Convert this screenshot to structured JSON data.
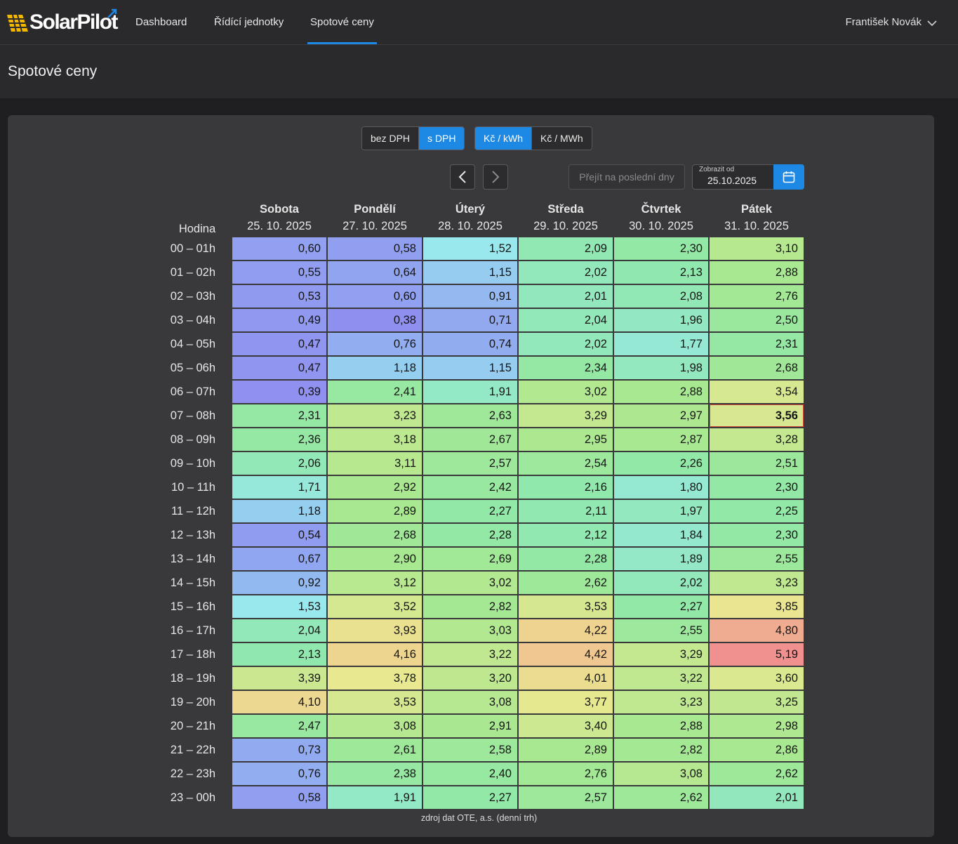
{
  "app": {
    "logo_text": "SolarPilot"
  },
  "nav": {
    "items": [
      {
        "label": "Dashboard"
      },
      {
        "label": "Řídící jednotky"
      },
      {
        "label": "Spotové ceny"
      }
    ],
    "active_index": 2,
    "user_name": "František Novák"
  },
  "page": {
    "title": "Spotové ceny"
  },
  "toggles": {
    "vat": {
      "options": [
        "bez DPH",
        "s DPH"
      ],
      "selected": "s DPH"
    },
    "unit": {
      "options": [
        "Kč / kWh",
        "Kč / MWh"
      ],
      "selected": "Kč / kWh"
    }
  },
  "controls": {
    "prev_icon": "chevron-left-icon",
    "next_icon": "chevron-right-icon",
    "recent_button": "Přejít na poslední dny",
    "date_label": "Zobrazit od",
    "date_value": "25.10.2025",
    "calendar_icon": "calendar-icon"
  },
  "table": {
    "hour_header": "Hodina",
    "days": [
      {
        "name": "Sobota",
        "date": "25. 10. 2025"
      },
      {
        "name": "Pondělí",
        "date": "27. 10. 2025"
      },
      {
        "name": "Úterý",
        "date": "28. 10. 2025"
      },
      {
        "name": "Středa",
        "date": "29. 10. 2025"
      },
      {
        "name": "Čtvrtek",
        "date": "30. 10. 2025"
      },
      {
        "name": "Pátek",
        "date": "31. 10. 2025"
      }
    ],
    "hours": [
      "00 – 01h",
      "01 – 02h",
      "02 – 03h",
      "03 – 04h",
      "04 – 05h",
      "05 – 06h",
      "06 – 07h",
      "07 – 08h",
      "08 – 09h",
      "09 – 10h",
      "10 – 11h",
      "11 – 12h",
      "12 – 13h",
      "13 – 14h",
      "14 – 15h",
      "15 – 16h",
      "16 – 17h",
      "17 – 18h",
      "18 – 19h",
      "19 – 20h",
      "20 – 21h",
      "21 – 22h",
      "22 – 23h",
      "23 – 00h"
    ],
    "values": [
      [
        "0,60",
        "0,58",
        "1,52",
        "2,09",
        "2,30",
        "3,10"
      ],
      [
        "0,55",
        "0,64",
        "1,15",
        "2,02",
        "2,13",
        "2,88"
      ],
      [
        "0,53",
        "0,60",
        "0,91",
        "2,01",
        "2,08",
        "2,76"
      ],
      [
        "0,49",
        "0,38",
        "0,71",
        "2,04",
        "1,96",
        "2,50"
      ],
      [
        "0,47",
        "0,76",
        "0,74",
        "2,02",
        "1,77",
        "2,31"
      ],
      [
        "0,47",
        "1,18",
        "1,15",
        "2,34",
        "1,98",
        "2,68"
      ],
      [
        "0,39",
        "2,41",
        "1,91",
        "3,02",
        "2,88",
        "3,54"
      ],
      [
        "2,31",
        "3,23",
        "2,63",
        "3,29",
        "2,97",
        "3,56"
      ],
      [
        "2,36",
        "3,18",
        "2,67",
        "2,95",
        "2,87",
        "3,28"
      ],
      [
        "2,06",
        "3,11",
        "2,57",
        "2,54",
        "2,26",
        "2,51"
      ],
      [
        "1,71",
        "2,92",
        "2,42",
        "2,16",
        "1,80",
        "2,30"
      ],
      [
        "1,18",
        "2,89",
        "2,27",
        "2,11",
        "1,97",
        "2,25"
      ],
      [
        "0,54",
        "2,68",
        "2,28",
        "2,12",
        "1,84",
        "2,30"
      ],
      [
        "0,67",
        "2,90",
        "2,69",
        "2,28",
        "1,89",
        "2,55"
      ],
      [
        "0,92",
        "3,12",
        "3,02",
        "2,62",
        "2,02",
        "3,23"
      ],
      [
        "1,53",
        "3,52",
        "2,82",
        "3,53",
        "2,27",
        "3,85"
      ],
      [
        "2,04",
        "3,93",
        "3,03",
        "4,22",
        "2,55",
        "4,80"
      ],
      [
        "2,13",
        "4,16",
        "3,22",
        "4,42",
        "3,29",
        "5,19"
      ],
      [
        "3,39",
        "3,78",
        "3,20",
        "4,01",
        "3,22",
        "3,60"
      ],
      [
        "4,10",
        "3,53",
        "3,08",
        "3,77",
        "3,23",
        "3,25"
      ],
      [
        "2,47",
        "3,08",
        "2,91",
        "3,40",
        "2,88",
        "2,98"
      ],
      [
        "0,73",
        "2,61",
        "2,58",
        "2,89",
        "2,82",
        "2,86"
      ],
      [
        "0,76",
        "2,38",
        "2,40",
        "2,76",
        "3,08",
        "2,62"
      ],
      [
        "0,58",
        "1,91",
        "2,27",
        "2,57",
        "2,62",
        "2,01"
      ]
    ],
    "current": {
      "row": 7,
      "col": 5
    }
  },
  "source": "zdroj dat OTE, a.s. (denní trh)",
  "colors": {
    "accent": "#1e88e5",
    "scale": [
      "#8f8ff0",
      "#98e8f0",
      "#90e8a8",
      "#a8e890",
      "#e8e890",
      "#f0c890",
      "#f09090"
    ]
  }
}
